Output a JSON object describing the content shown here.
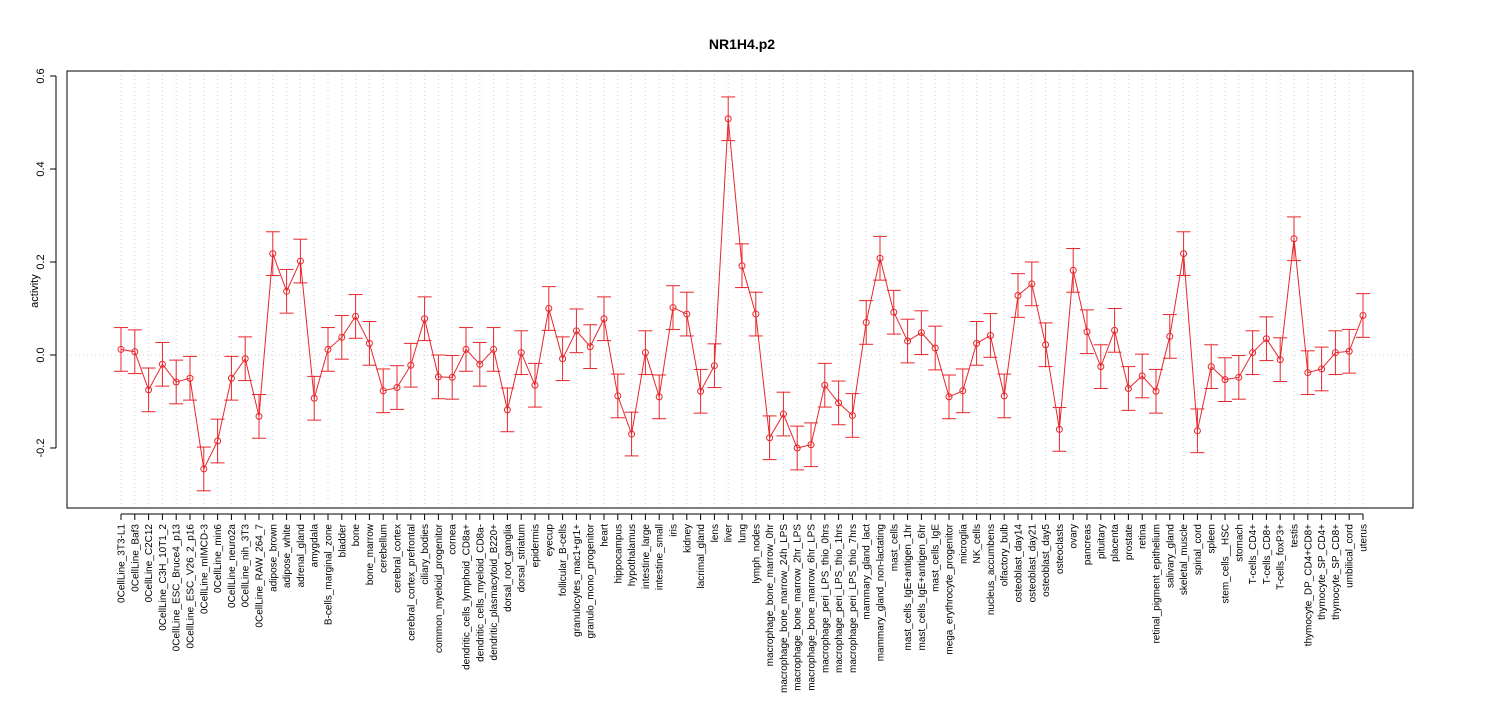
{
  "chart_data": {
    "type": "line",
    "title": "NR1H4.p2",
    "xlabel": "",
    "ylabel": "activity",
    "ylim": [
      -0.33,
      0.61
    ],
    "yticks": [
      -0.2,
      0.0,
      0.2,
      0.4,
      0.6
    ],
    "ytick_labels": [
      "-0.2",
      "0.0",
      "0.2",
      "0.4",
      "0.6"
    ],
    "grid": "vertical dotted",
    "reference_line": 0,
    "colors": {
      "series": "#e8262b",
      "grid": "#d3d3d3",
      "axis": "#000000"
    },
    "categories": [
      "0CellLine_3T3-L1",
      "0CellLine_Baf3",
      "0CellLine_C2C12",
      "0CellLine_C3H_10T1_2",
      "0CellLine_ESC_Bruce4_p13",
      "0CellLine_ESC_V26_2_p16",
      "0CellLine_mIMCD-3",
      "0CellLine_min6",
      "0CellLine_neuro2a",
      "0CellLine_nih_3T3",
      "0CellLine_RAW_264_7",
      "adipose_brown",
      "adipose_white",
      "adrenal_gland",
      "amygdala",
      "B-cells_marginal_zone",
      "bladder",
      "bone",
      "bone_marrow",
      "cerebellum",
      "cerebral_cortex",
      "cerebral_cortex_prefrontal",
      "ciliary_bodies",
      "common_myeloid_progenitor",
      "cornea",
      "dendritic_cells_lymphoid_CD8a+",
      "dendritic_cells_myeloid_CD8a-",
      "dendritic_plasmacytoid_B220+",
      "dorsal_root_ganglia",
      "dorsal_striatum",
      "epidermis",
      "eyecup",
      "follicular_B-cells",
      "granulocytes_mac1+gr1+",
      "granulo_mono_progenitor",
      "heart",
      "hippocampus",
      "hypothalamus",
      "intestine_large",
      "intestine_small",
      "iris",
      "kidney",
      "lacrimal_gland",
      "lens",
      "liver",
      "lung",
      "lymph_nodes",
      "macrophage_bone_marrow_0hr",
      "macrophage_bone_marrow_24h_LPS",
      "macrophage_bone_marrow_2hr_LPS",
      "macrophage_bone_marrow_6hr_LPS",
      "macrophage_peri_LPS_thio_0hrs",
      "macrophage_peri_LPS_thio_1hrs",
      "macrophage_peri_LPS_thio_7hrs",
      "mammary_gland_lact",
      "mammary_gland_non-lactating",
      "mast_cells",
      "mast_cells_IgE+antigen_1hr",
      "mast_cells_IgE+antigen_6hr",
      "mast_cells_IgE",
      "mega_erythrocyte_progenitor",
      "microglia",
      "NK_cells",
      "nucleus_accumbens",
      "olfactory_bulb",
      "osteoblast_day14",
      "osteoblast_day21",
      "osteoblast_day5",
      "osteoclasts",
      "ovary",
      "pancreas",
      "pituitary",
      "placenta",
      "prostate",
      "retina",
      "retinal_pigment_epithelium",
      "salivary_gland",
      "skeletal_muscle",
      "spinal_cord",
      "spleen",
      "stem_cells__HSC",
      "stomach",
      "T-cells_CD4+",
      "T-cells_CD8+",
      "T-cells_foxP3+",
      "testis",
      "thymocyte_DP_CD4+CD8+",
      "thymocyte_SP_CD4+",
      "thymocyte_SP_CD8+",
      "umbilical_cord",
      "uterus"
    ],
    "series": [
      {
        "values": [
          0.012,
          0.007,
          -0.075,
          -0.02,
          -0.058,
          -0.05,
          -0.245,
          -0.185,
          -0.05,
          -0.008,
          -0.132,
          0.218,
          0.137,
          0.202,
          -0.093,
          0.012,
          0.038,
          0.083,
          0.025,
          -0.077,
          -0.07,
          -0.022,
          0.078,
          -0.047,
          -0.048,
          0.012,
          -0.02,
          0.012,
          -0.118,
          0.005,
          -0.065,
          0.1,
          -0.008,
          0.052,
          0.018,
          0.078,
          -0.088,
          -0.17,
          0.005,
          -0.09,
          0.102,
          0.088,
          -0.078,
          -0.023,
          0.508,
          0.192,
          0.088,
          -0.178,
          -0.127,
          -0.2,
          -0.193,
          -0.065,
          -0.103,
          -0.13,
          0.07,
          0.208,
          0.092,
          0.03,
          0.048,
          0.015,
          -0.09,
          -0.077,
          0.025,
          0.042,
          -0.088,
          0.128,
          0.153,
          0.022,
          -0.16,
          0.182,
          0.05,
          -0.025,
          0.053,
          -0.072,
          -0.045,
          -0.078,
          0.04,
          0.218,
          -0.163,
          -0.025,
          -0.053,
          -0.048,
          0.005,
          0.035,
          -0.01,
          0.25,
          -0.038,
          -0.03,
          0.005,
          0.008,
          0.085
        ],
        "error": 0.047
      }
    ]
  }
}
